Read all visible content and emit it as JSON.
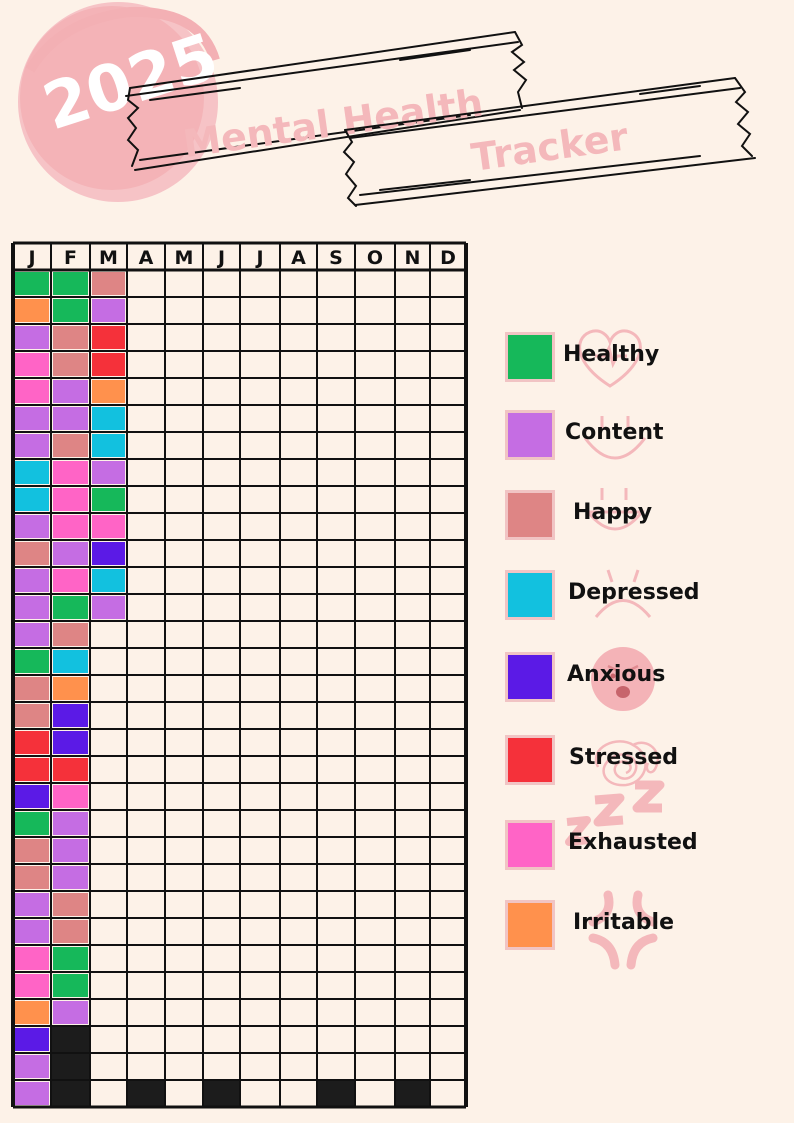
{
  "header": {
    "year": "2025",
    "title_line1": "Mental Health",
    "title_line2": "Tracker"
  },
  "tracker": {
    "months": [
      "J",
      "F",
      "M",
      "A",
      "M",
      "J",
      "J",
      "A",
      "S",
      "O",
      "N",
      "D"
    ],
    "days_per_month": [
      31,
      28,
      31,
      30,
      31,
      30,
      31,
      31,
      30,
      31,
      30,
      31
    ],
    "mood_colors": {
      "healthy": "#16b85a",
      "content": "#c56de3",
      "happy": "#de8585",
      "depressed": "#12c1df",
      "anxious": "#5b1ae6",
      "stressed": "#f5313a",
      "exhausted": "#ff64c6",
      "irritable": "#ff914d"
    },
    "colors": {
      "line": "#111111",
      "cell_bg": "#fdf2e8",
      "blocked": "#1c1c1c"
    },
    "logged": [
      [
        "healthy",
        "irritable",
        "content",
        "exhausted",
        "exhausted",
        "content",
        "content",
        "depressed",
        "depressed",
        "content",
        "happy",
        "content",
        "content",
        "content",
        "healthy",
        "happy",
        "happy",
        "stressed",
        "stressed",
        "anxious",
        "healthy",
        "happy",
        "happy",
        "content",
        "content",
        "exhausted",
        "exhausted",
        "irritable",
        "anxious",
        "content",
        "content"
      ],
      [
        "healthy",
        "healthy",
        "happy",
        "happy",
        "content",
        "content",
        "happy",
        "exhausted",
        "exhausted",
        "exhausted",
        "content",
        "exhausted",
        "healthy",
        "happy",
        "depressed",
        "irritable",
        "anxious",
        "anxious",
        "stressed",
        "exhausted",
        "content",
        "content",
        "content",
        "happy",
        "happy",
        "healthy",
        "healthy",
        "content"
      ],
      [
        "happy",
        "content",
        "stressed",
        "stressed",
        "irritable",
        "depressed",
        "depressed",
        "content",
        "healthy",
        "exhausted",
        "anxious",
        "depressed",
        "content"
      ]
    ]
  },
  "legend": [
    {
      "key": "healthy",
      "label": "Healthy",
      "icon": "heart-icon"
    },
    {
      "key": "content",
      "label": "Content",
      "icon": "smile-icon"
    },
    {
      "key": "happy",
      "label": "Happy",
      "icon": "grin-icon"
    },
    {
      "key": "depressed",
      "label": "Depressed",
      "icon": "frown-icon"
    },
    {
      "key": "anxious",
      "label": "Anxious",
      "icon": "worried-face-icon"
    },
    {
      "key": "stressed",
      "label": "Stressed",
      "icon": "scribble-icon"
    },
    {
      "key": "exhausted",
      "label": "Exhausted",
      "icon": "zzz-icon"
    },
    {
      "key": "irritable",
      "label": "Irritable",
      "icon": "anger-icon"
    }
  ]
}
